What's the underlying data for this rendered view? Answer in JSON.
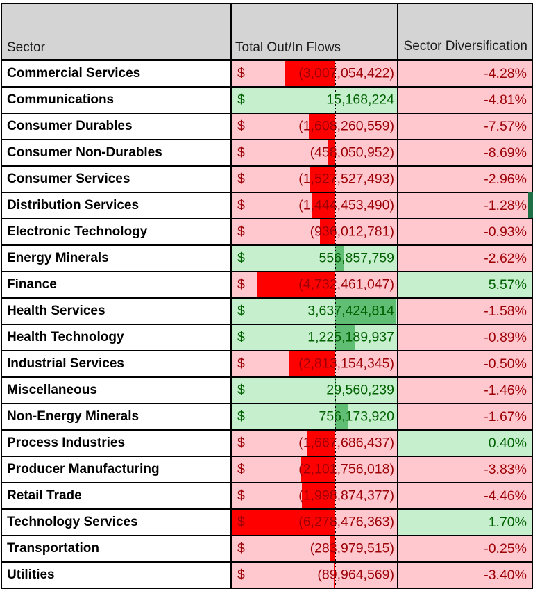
{
  "table": {
    "headers": {
      "sector": "Sector",
      "flows": "Total Out/In Flows",
      "diversification": "Sector Diversification"
    },
    "currency_symbol": "$",
    "rows": [
      {
        "sector": "Commercial Services",
        "flow_display": "(3,007,054,422)",
        "flow_value": -3007054422,
        "div_display": "-4.28%"
      },
      {
        "sector": "Communications",
        "flow_display": "15,168,224",
        "flow_value": 15168224,
        "div_display": "-4.81%"
      },
      {
        "sector": "Consumer Durables",
        "flow_display": "(1,608,260,559)",
        "flow_value": -1608260559,
        "div_display": "-7.57%"
      },
      {
        "sector": "Consumer Non-Durables",
        "flow_display": "(458,050,952)",
        "flow_value": -458050952,
        "div_display": "-8.69%"
      },
      {
        "sector": "Consumer Services",
        "flow_display": "(1,527,527,493)",
        "flow_value": -1527527493,
        "div_display": "-2.96%"
      },
      {
        "sector": "Distribution Services",
        "flow_display": "(1,444,453,490)",
        "flow_value": -1444453490,
        "div_display": "-1.28%"
      },
      {
        "sector": "Electronic Technology",
        "flow_display": "(936,012,781)",
        "flow_value": -936012781,
        "div_display": "-0.93%"
      },
      {
        "sector": "Energy Minerals",
        "flow_display": "556,857,759",
        "flow_value": 556857759,
        "div_display": "-2.62%"
      },
      {
        "sector": "Finance",
        "flow_display": "(4,732,461,047)",
        "flow_value": -4732461047,
        "div_display": "5.57%"
      },
      {
        "sector": "Health Services",
        "flow_display": "3,637,424,814",
        "flow_value": 3637424814,
        "div_display": "-1.58%"
      },
      {
        "sector": "Health Technology",
        "flow_display": "1,225,189,937",
        "flow_value": 1225189937,
        "div_display": "-0.89%"
      },
      {
        "sector": "Industrial Services",
        "flow_display": "(2,813,154,345)",
        "flow_value": -2813154345,
        "div_display": "-0.50%"
      },
      {
        "sector": "Miscellaneous",
        "flow_display": "29,560,239",
        "flow_value": 29560239,
        "div_display": "-1.46%"
      },
      {
        "sector": "Non-Energy Minerals",
        "flow_display": "756,173,920",
        "flow_value": 756173920,
        "div_display": "-1.67%"
      },
      {
        "sector": "Process Industries",
        "flow_display": "(1,667,686,437)",
        "flow_value": -1667686437,
        "div_display": "0.40%"
      },
      {
        "sector": "Producer Manufacturing",
        "flow_display": "(2,101,756,018)",
        "flow_value": -2101756018,
        "div_display": "-3.83%"
      },
      {
        "sector": "Retail Trade",
        "flow_display": "(1,998,874,377)",
        "flow_value": -1998874377,
        "div_display": "-4.46%"
      },
      {
        "sector": "Technology Services",
        "flow_display": "(6,278,476,363)",
        "flow_value": -6278476363,
        "div_display": "1.70%"
      },
      {
        "sector": "Transportation",
        "flow_display": "(283,979,515)",
        "flow_value": -283979515,
        "div_display": "-0.25%"
      },
      {
        "sector": "Utilities",
        "flow_display": "(89,964,569)",
        "flow_value": -89964569,
        "div_display": "-3.40%"
      }
    ]
  },
  "databars": {
    "axis_min": -6278476363,
    "axis_max": 3637424814,
    "negative_bar_color": "#FF0000",
    "positive_bar_color": "#5FBD74"
  },
  "colors": {
    "header_bg": "#D4D4D4",
    "negative_bg": "#FFC7CE",
    "negative_text": "#9C0006",
    "positive_bg": "#C6EFCE",
    "positive_text": "#006100",
    "selection_green": "#1E7145"
  },
  "selection_indicator": {
    "row_index": 5
  }
}
